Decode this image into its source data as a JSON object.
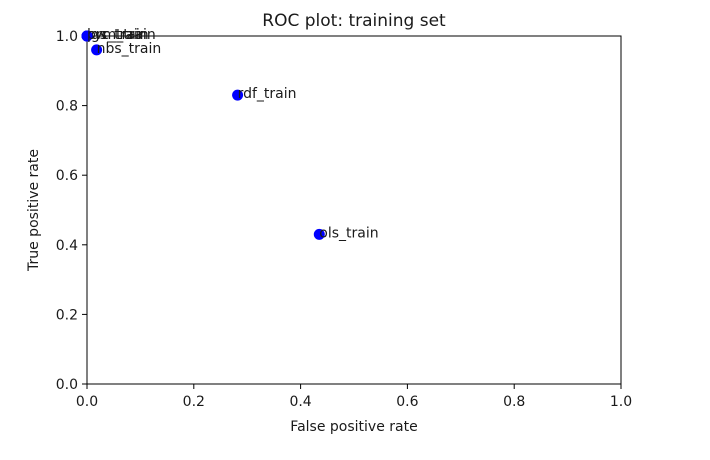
{
  "chart_data": {
    "type": "scatter",
    "title": "ROC plot: training set",
    "xlabel": "False positive rate",
    "ylabel": "True positive rate",
    "xlim": [
      0.0,
      1.0
    ],
    "ylim": [
      0.0,
      1.0
    ],
    "xticks": [
      "0.0",
      "0.2",
      "0.4",
      "0.6",
      "0.8",
      "1.0"
    ],
    "yticks": [
      "0.0",
      "0.2",
      "0.4",
      "0.6",
      "0.8",
      "1.0"
    ],
    "grid": false,
    "marker_color": "#0000ff",
    "points": [
      {
        "label": "ols_train",
        "x": 0.435,
        "y": 0.43
      },
      {
        "label": "rdf_train",
        "x": 0.282,
        "y": 0.83
      },
      {
        "label": "nbs_train",
        "x": 0.018,
        "y": 0.96
      },
      {
        "label": "lgs_train",
        "x": 0.0,
        "y": 1.0
      },
      {
        "label": "svm_train",
        "x": 0.0,
        "y": 1.0
      },
      {
        "label": "prc_train",
        "x": 0.0,
        "y": 1.0
      }
    ]
  }
}
